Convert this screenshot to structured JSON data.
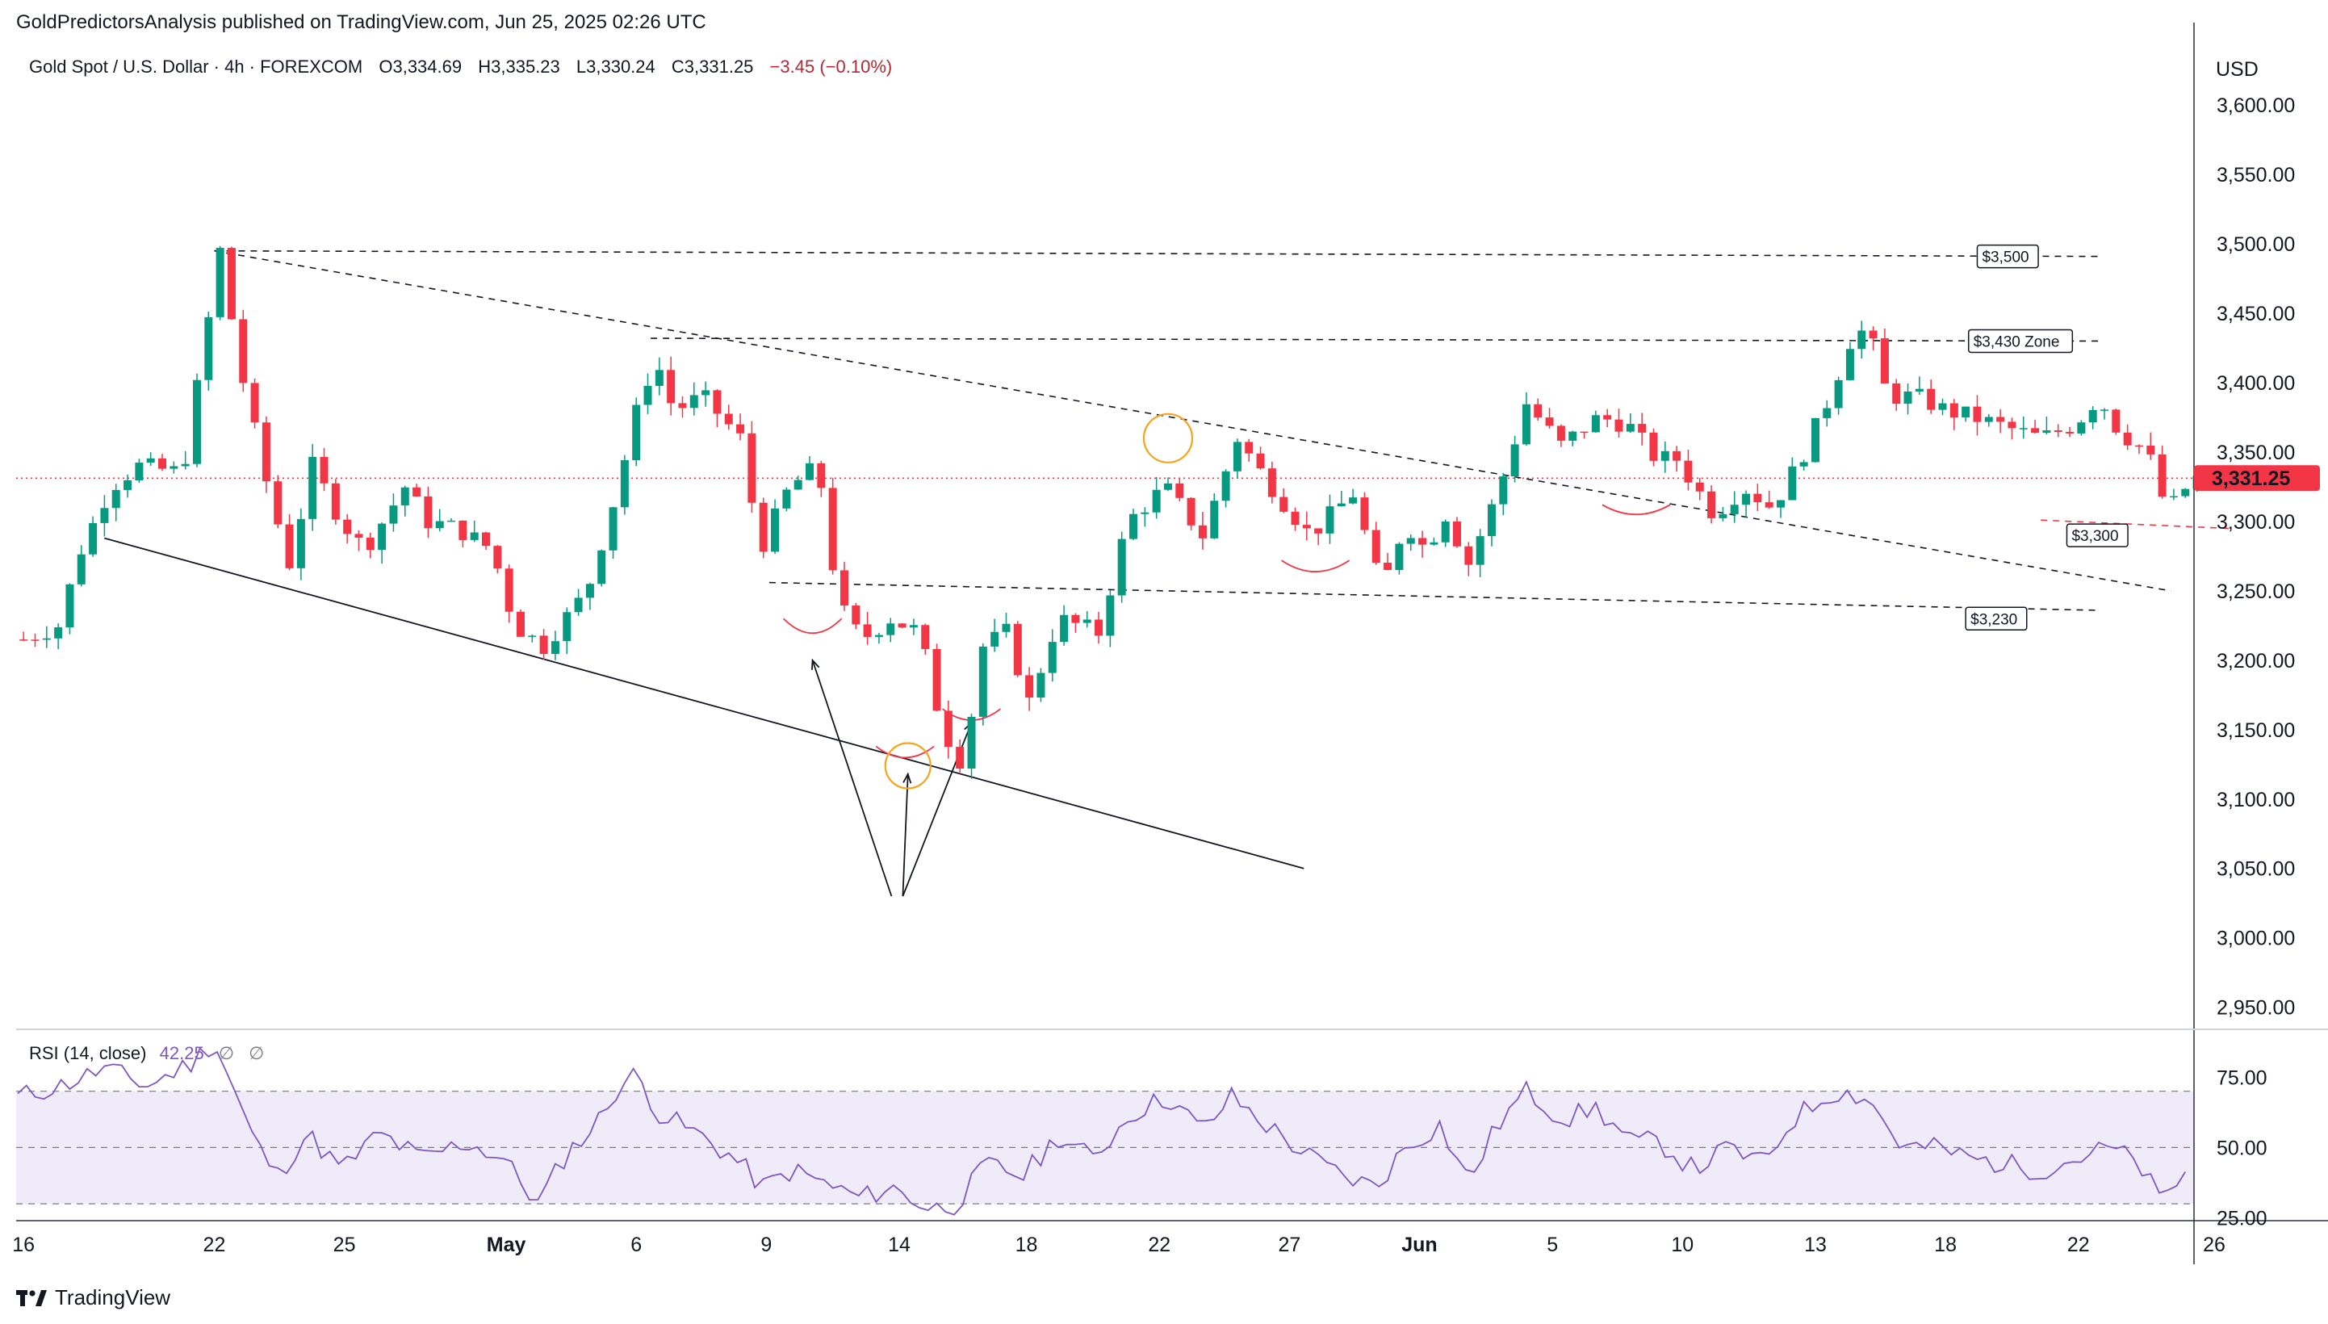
{
  "header": {
    "publisher": "GoldPredictorsAnalysis published on TradingView.com, Jun 25, 2025 02:26 UTC"
  },
  "legend": {
    "symbol": "Gold Spot / U.S. Dollar · 4h · FOREXCOM",
    "open": "O3,334.69",
    "high": "H3,335.23",
    "low": "L3,330.24",
    "close": "C3,331.25",
    "change": "−3.45 (−0.10%)"
  },
  "rsi_legend": {
    "label": "RSI (14, close)",
    "value": "42.25",
    "na1": "∅",
    "na2": "∅"
  },
  "footer": {
    "brand": "TradingView"
  },
  "colors": {
    "up": "#089981",
    "down": "#f23645",
    "rsi_line": "#7e57c2",
    "rsi_band": "#7e57c2",
    "price_label_bg": "#f23645",
    "current_price_line": "#f23645",
    "support_line": "#f23645"
  },
  "chart_data": [
    {
      "type": "candlestick",
      "title": "Gold Spot / U.S. Dollar · 4h · FOREXCOM",
      "currency_label": "USD",
      "ylim": [
        2937,
        3642
      ],
      "price_ticks": [
        "3,600.00",
        "3,550.00",
        "3,500.00",
        "3,450.00",
        "3,400.00",
        "3,350.00",
        "3,300.00",
        "3,250.00",
        "3,200.00",
        "3,150.00",
        "3,100.00",
        "3,050.00",
        "3,000.00",
        "2,950.00"
      ],
      "price_tick_values": [
        3600,
        3550,
        3500,
        3450,
        3400,
        3350,
        3300,
        3250,
        3200,
        3150,
        3100,
        3050,
        3000,
        2950
      ],
      "x_ticks": [
        "16",
        "22",
        "25",
        "May",
        "6",
        "9",
        "14",
        "18",
        "22",
        "27",
        "Jun",
        "5",
        "10",
        "13",
        "18",
        "22",
        "26"
      ],
      "x_tick_bars": [
        2,
        68,
        113,
        169,
        214,
        259,
        305,
        349,
        395,
        440,
        485,
        531,
        576,
        622,
        667,
        713,
        760
      ],
      "current_price": "3,331.25",
      "current_price_value": 3331.25,
      "price_path": [
        [
          0,
          3215
        ],
        [
          12,
          3225
        ],
        [
          20,
          3280
        ],
        [
          30,
          3325
        ],
        [
          40,
          3340
        ],
        [
          55,
          3335
        ],
        [
          68,
          3495
        ],
        [
          75,
          3410
        ],
        [
          85,
          3320
        ],
        [
          92,
          3270
        ],
        [
          100,
          3340
        ],
        [
          110,
          3300
        ],
        [
          118,
          3280
        ],
        [
          132,
          3325
        ],
        [
          140,
          3300
        ],
        [
          150,
          3295
        ],
        [
          162,
          3280
        ],
        [
          170,
          3225
        ],
        [
          180,
          3210
        ],
        [
          195,
          3250
        ],
        [
          205,
          3320
        ],
        [
          214,
          3395
        ],
        [
          219,
          3415
        ],
        [
          225,
          3380
        ],
        [
          235,
          3390
        ],
        [
          248,
          3360
        ],
        [
          255,
          3280
        ],
        [
          265,
          3325
        ],
        [
          275,
          3340
        ],
        [
          282,
          3240
        ],
        [
          290,
          3215
        ],
        [
          300,
          3230
        ],
        [
          310,
          3220
        ],
        [
          318,
          3150
        ],
        [
          325,
          3125
        ],
        [
          332,
          3210
        ],
        [
          340,
          3220
        ],
        [
          348,
          3170
        ],
        [
          358,
          3230
        ],
        [
          372,
          3220
        ],
        [
          382,
          3300
        ],
        [
          395,
          3325
        ],
        [
          408,
          3290
        ],
        [
          420,
          3360
        ],
        [
          430,
          3330
        ],
        [
          445,
          3290
        ],
        [
          460,
          3320
        ],
        [
          470,
          3250
        ],
        [
          478,
          3300
        ],
        [
          485,
          3280
        ],
        [
          492,
          3305
        ],
        [
          500,
          3270
        ],
        [
          510,
          3320
        ],
        [
          520,
          3385
        ],
        [
          532,
          3355
        ],
        [
          545,
          3375
        ],
        [
          555,
          3370
        ],
        [
          565,
          3345
        ],
        [
          572,
          3345
        ],
        [
          585,
          3305
        ],
        [
          595,
          3325
        ],
        [
          605,
          3310
        ],
        [
          615,
          3345
        ],
        [
          625,
          3390
        ],
        [
          632,
          3430
        ],
        [
          638,
          3440
        ],
        [
          645,
          3390
        ],
        [
          655,
          3390
        ],
        [
          665,
          3380
        ],
        [
          675,
          3375
        ],
        [
          690,
          3365
        ],
        [
          698,
          3360
        ],
        [
          710,
          3370
        ],
        [
          718,
          3390
        ],
        [
          725,
          3365
        ],
        [
          735,
          3350
        ],
        [
          742,
          3305
        ],
        [
          746,
          3320
        ],
        [
          752,
          3331
        ]
      ],
      "bar_count": 753,
      "annotations": [
        {
          "text": "$3,500",
          "price": 3500
        },
        {
          "text": "$3,430 Zone",
          "price": 3430
        },
        {
          "text": "$3,300",
          "price": 3300
        },
        {
          "text": "$3,230",
          "price": 3230
        }
      ]
    },
    {
      "type": "line",
      "title": "RSI (14, close)",
      "ylim": [
        24,
        92
      ],
      "ticks": [
        "75.00",
        "50.00",
        "25.00"
      ],
      "tick_values": [
        75,
        50,
        25
      ],
      "band": [
        30,
        70
      ],
      "midline": 50,
      "last_value": 42.25,
      "rsi_path": [
        [
          0,
          68
        ],
        [
          15,
          72
        ],
        [
          30,
          78
        ],
        [
          45,
          72
        ],
        [
          60,
          80
        ],
        [
          68,
          88
        ],
        [
          75,
          70
        ],
        [
          82,
          52
        ],
        [
          90,
          40
        ],
        [
          100,
          55
        ],
        [
          112,
          42
        ],
        [
          125,
          55
        ],
        [
          140,
          46
        ],
        [
          155,
          52
        ],
        [
          168,
          46
        ],
        [
          180,
          30
        ],
        [
          190,
          48
        ],
        [
          200,
          58
        ],
        [
          208,
          72
        ],
        [
          214,
          76
        ],
        [
          222,
          62
        ],
        [
          235,
          55
        ],
        [
          248,
          46
        ],
        [
          258,
          36
        ],
        [
          268,
          42
        ],
        [
          282,
          36
        ],
        [
          292,
          32
        ],
        [
          302,
          36
        ],
        [
          316,
          28
        ],
        [
          325,
          30
        ],
        [
          335,
          44
        ],
        [
          348,
          40
        ],
        [
          360,
          54
        ],
        [
          372,
          46
        ],
        [
          385,
          62
        ],
        [
          398,
          68
        ],
        [
          410,
          56
        ],
        [
          420,
          68
        ],
        [
          432,
          58
        ],
        [
          445,
          48
        ],
        [
          458,
          40
        ],
        [
          470,
          36
        ],
        [
          480,
          50
        ],
        [
          492,
          58
        ],
        [
          502,
          38
        ],
        [
          512,
          58
        ],
        [
          522,
          70
        ],
        [
          535,
          60
        ],
        [
          546,
          64
        ],
        [
          558,
          52
        ],
        [
          568,
          52
        ],
        [
          580,
          42
        ],
        [
          592,
          50
        ],
        [
          604,
          44
        ],
        [
          614,
          60
        ],
        [
          628,
          70
        ],
        [
          640,
          68
        ],
        [
          652,
          50
        ],
        [
          664,
          50
        ],
        [
          676,
          46
        ],
        [
          688,
          44
        ],
        [
          700,
          42
        ],
        [
          712,
          46
        ],
        [
          724,
          50
        ],
        [
          734,
          44
        ],
        [
          742,
          30
        ],
        [
          750,
          42
        ],
        [
          752,
          42.25
        ]
      ]
    }
  ]
}
